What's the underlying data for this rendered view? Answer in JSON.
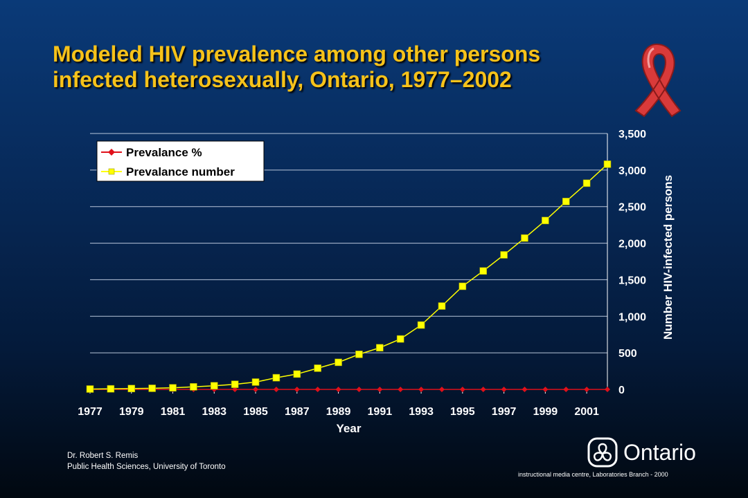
{
  "title_lines": [
    "Modeled HIV prevalence among other persons",
    "infected heterosexually, Ontario, 1977–2002"
  ],
  "footer": {
    "author": "Dr. Robert S. Remis",
    "affiliation": "Public Health Sciences, University of Toronto",
    "credit": "instructional media centre, Laboratories Branch - 2000",
    "logo_text": "Ontario"
  },
  "icons": {
    "ribbon": "red-ribbon-icon",
    "logo": "ontario-trillium-icon"
  },
  "chart_data": {
    "type": "line",
    "xlabel": "Year",
    "ylabel": "Number HIV-infected persons",
    "x": [
      1977,
      1978,
      1979,
      1980,
      1981,
      1982,
      1983,
      1984,
      1985,
      1986,
      1987,
      1988,
      1989,
      1990,
      1991,
      1992,
      1993,
      1994,
      1995,
      1996,
      1997,
      1998,
      1999,
      2000,
      2001,
      2002
    ],
    "x_tick_labels": [
      "1977",
      "1979",
      "1981",
      "1983",
      "1985",
      "1987",
      "1989",
      "1991",
      "1993",
      "1995",
      "1997",
      "1999",
      "2001"
    ],
    "y_tick_labels": [
      "0",
      "500",
      "1,000",
      "1,500",
      "2,000",
      "2,500",
      "3,000",
      "3,500"
    ],
    "ylim": [
      0,
      3500
    ],
    "grid": true,
    "legend_position": "top-left",
    "series": [
      {
        "name": "Prevalance %",
        "color": "#e0101a",
        "marker": "diamond",
        "values": [
          0,
          0,
          0,
          0,
          0,
          0,
          0,
          0,
          0,
          0,
          0,
          0,
          0,
          0,
          0,
          0,
          0,
          0,
          0,
          0,
          0,
          0,
          0,
          0,
          0,
          0
        ]
      },
      {
        "name": "Prevalance number",
        "color": "#ffff00",
        "marker": "square",
        "values": [
          5,
          8,
          12,
          15,
          22,
          35,
          50,
          70,
          100,
          160,
          210,
          290,
          370,
          480,
          570,
          690,
          880,
          1140,
          1410,
          1620,
          1840,
          2070,
          2310,
          2570,
          2820,
          3080
        ]
      }
    ]
  }
}
